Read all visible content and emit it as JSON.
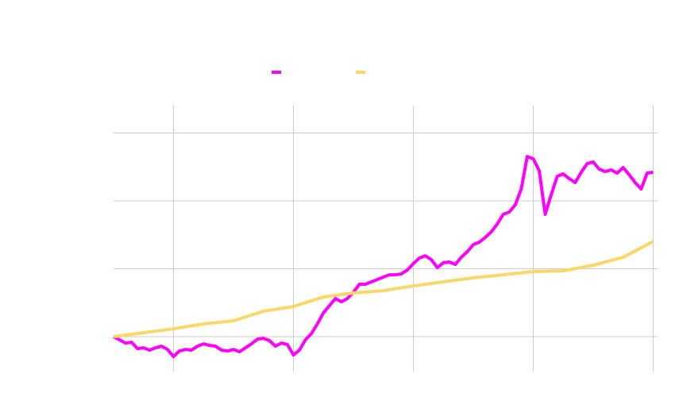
{
  "chart_data": {
    "type": "line",
    "x": [
      0,
      1,
      2,
      3,
      4,
      5,
      6,
      7,
      8,
      9,
      10,
      11,
      12,
      13,
      14,
      15,
      16,
      17,
      18,
      19,
      20,
      21,
      22,
      23,
      24,
      25,
      26,
      27,
      28,
      29,
      30,
      31,
      32,
      33,
      34,
      35,
      36,
      37,
      38,
      39,
      40,
      41,
      42,
      43,
      44,
      45,
      46,
      47,
      48,
      49,
      50,
      51,
      52,
      53,
      54,
      55,
      56,
      57,
      58,
      59,
      60,
      61,
      62,
      63,
      64,
      65,
      66,
      67,
      68,
      69,
      70,
      71,
      72,
      73,
      74,
      75,
      76,
      77,
      78,
      79,
      80,
      81,
      82,
      83,
      84,
      85,
      86,
      87,
      88,
      89,
      90
    ],
    "series": [
      {
        "color": "#ff00ff",
        "values": [
          100,
          97.7,
          95.3,
          95.9,
          91.2,
          91.8,
          90.1,
          91.8,
          93,
          90.6,
          85.4,
          89.5,
          90.6,
          90.1,
          93,
          94.7,
          93.6,
          93,
          90.1,
          89.5,
          90.6,
          88.9,
          91.8,
          94.7,
          98.2,
          98.8,
          97.1,
          93,
          95.3,
          94.2,
          86.5,
          90.1,
          97.7,
          102.3,
          109.4,
          117.5,
          122.8,
          128.1,
          125.7,
          128.1,
          132.7,
          138.6,
          138.6,
          140.4,
          142.1,
          143.9,
          145.6,
          145.6,
          146.2,
          149.1,
          153.8,
          157.9,
          159.6,
          156.7,
          150.9,
          154.4,
          155,
          153.2,
          158.5,
          162.6,
          167.8,
          169.6,
          173.1,
          177.2,
          183,
          190.1,
          191.8,
          197.1,
          208.8,
          232.7,
          231,
          222.2,
          190.1,
          204.7,
          218.1,
          219.9,
          216.4,
          213.5,
          221.1,
          227.5,
          228.7,
          223.4,
          221.6,
          222.8,
          220.5,
          224.6,
          219.3,
          213.5,
          208.8,
          220.5,
          221.1
        ]
      },
      {
        "color": "#fad867",
        "values": [
          100,
          100.6,
          101.2,
          101.7,
          102.3,
          102.9,
          103.5,
          104.1,
          104.6,
          105.2,
          105.8,
          106.5,
          107.3,
          108,
          108.7,
          109.4,
          109.9,
          110.3,
          110.8,
          111.2,
          111.7,
          113.1,
          114.5,
          115.9,
          117.3,
          118.7,
          119.4,
          120.1,
          120.8,
          121.5,
          122.2,
          123.6,
          125,
          126.4,
          127.8,
          129.2,
          129.8,
          130.4,
          131,
          131.6,
          132.2,
          132.5,
          132.9,
          133.2,
          133.6,
          133.9,
          134.6,
          135.3,
          136,
          136.7,
          137.4,
          138,
          138.6,
          139.2,
          139.8,
          140.4,
          141,
          141.6,
          142.1,
          142.7,
          143.3,
          143.8,
          144.2,
          144.7,
          145.1,
          145.6,
          146.1,
          146.6,
          147,
          147.5,
          148,
          148.1,
          148.2,
          148.3,
          148.4,
          148.5,
          149.3,
          150.1,
          151,
          151.8,
          152.6,
          153.8,
          155,
          156.1,
          157.3,
          158.5,
          160.8,
          163.2,
          165.5,
          167.9,
          170.2
        ]
      }
    ],
    "xlim": [
      0,
      91
    ],
    "xticks": [
      10,
      30,
      50,
      70,
      90
    ],
    "ylim": [
      74.3,
      270.2
    ],
    "yticks": [
      100,
      150,
      200,
      250
    ],
    "grid": true,
    "legend": "top"
  }
}
